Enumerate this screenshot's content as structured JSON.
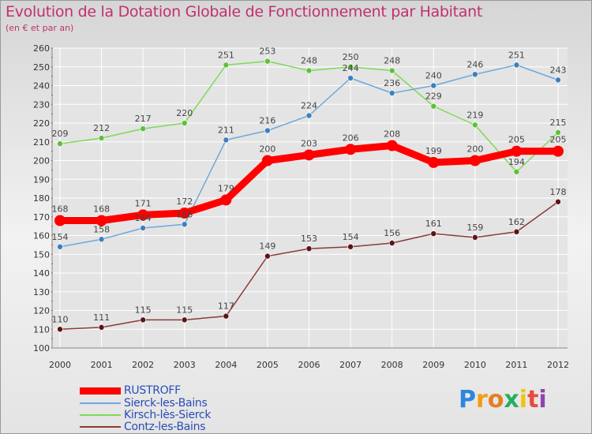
{
  "title": "Evolution de la Dotation Globale de Fonctionnement par Habitant",
  "subtitle": "(en € et par an)",
  "logo_text": "Proxiti",
  "colors": {
    "title": "#c0316d",
    "axis_text": "#333333",
    "legend_text": "#2a4db8",
    "grid": "#ffffff"
  },
  "chart_data": {
    "type": "line",
    "title": "Evolution de la Dotation Globale de Fonctionnement par Habitant",
    "subtitle": "(en € et par an)",
    "xlabel": "",
    "ylabel": "",
    "x": [
      "2000",
      "2001",
      "2002",
      "2003",
      "2004",
      "2005",
      "2006",
      "2007",
      "2008",
      "2009",
      "2010",
      "2011",
      "2012"
    ],
    "ylim": [
      100,
      260
    ],
    "yticks": [
      100,
      110,
      120,
      130,
      140,
      150,
      160,
      170,
      180,
      190,
      200,
      210,
      220,
      230,
      240,
      250,
      260
    ],
    "grid": true,
    "legend_position": "bottom-left",
    "series": [
      {
        "name": "Kirsch-lès-Sierck",
        "color": "#7ed957",
        "marker": "#5fbf3a",
        "values": [
          209,
          212,
          217,
          220,
          251,
          253,
          248,
          250,
          248,
          229,
          219,
          194,
          215
        ]
      },
      {
        "name": "Sierck-les-Bains",
        "color": "#6fa8dc",
        "marker": "#3d7fbf",
        "values": [
          154,
          158,
          164,
          166,
          211,
          216,
          224,
          244,
          236,
          240,
          246,
          251,
          243
        ]
      },
      {
        "name": "Contz-les-Bains",
        "color": "#8b3a3a",
        "marker": "#5c1414",
        "values": [
          110,
          111,
          115,
          115,
          117,
          149,
          153,
          154,
          156,
          161,
          159,
          162,
          178
        ]
      },
      {
        "name": "RUSTROFF",
        "color": "#ff0000",
        "marker": "#ff0000",
        "values": [
          168,
          168,
          171,
          172,
          179,
          200,
          203,
          206,
          208,
          199,
          200,
          205,
          205
        ],
        "bold": true
      }
    ],
    "labels": [
      {
        "series": "RUSTROFF",
        "texts": [
          "168",
          "168",
          "171",
          "172",
          "179",
          "200",
          "203",
          "206",
          "208",
          "199",
          "200",
          "205",
          "205"
        ]
      },
      {
        "series": "Sierck-les-Bains",
        "texts": [
          "154",
          "158",
          "164",
          "166",
          "211",
          "216",
          "224",
          "244",
          "236",
          "240",
          "246",
          "251",
          "243"
        ]
      },
      {
        "series": "Kirsch-lès-Sierck",
        "texts": [
          "209",
          "212",
          "217",
          "220",
          "251",
          "253",
          "248",
          "250",
          "248",
          "229",
          "219",
          "194",
          "215"
        ]
      },
      {
        "series": "Contz-les-Bains",
        "texts": [
          "110",
          "111",
          "115",
          "115",
          "117",
          "149",
          "153",
          "154",
          "156",
          "161",
          "159",
          "162",
          "178"
        ]
      }
    ]
  },
  "legend": [
    {
      "label": "RUSTROFF",
      "color": "#ff0000"
    },
    {
      "label": "Sierck-les-Bains",
      "color": "#6fa8dc"
    },
    {
      "label": "Kirsch-lès-Sierck",
      "color": "#7ed957"
    },
    {
      "label": "Contz-les-Bains",
      "color": "#8b3a3a"
    }
  ]
}
